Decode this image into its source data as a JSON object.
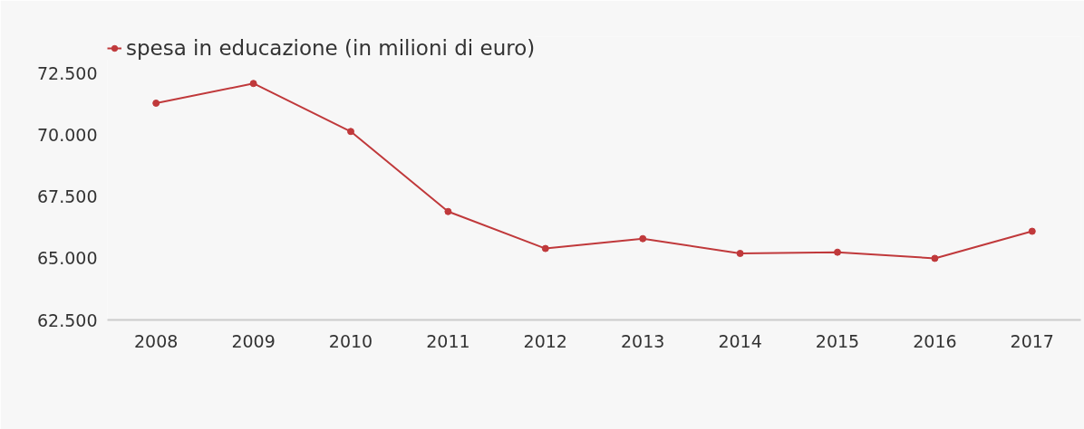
{
  "chart_data": {
    "type": "line",
    "categories": [
      "2008",
      "2009",
      "2010",
      "2011",
      "2012",
      "2013",
      "2014",
      "2015",
      "2016",
      "2017"
    ],
    "series": [
      {
        "name": "spesa in educazione (in milioni di euro)",
        "color": "#c0393b",
        "values": [
          71300,
          72100,
          70150,
          66900,
          65400,
          65800,
          65200,
          65250,
          65000,
          66100
        ]
      }
    ],
    "ylim": [
      62500,
      74000
    ],
    "yticks": [
      {
        "value": 62500,
        "label": "62.500"
      },
      {
        "value": 65000,
        "label": "65.000"
      },
      {
        "value": 67500,
        "label": "67.500"
      },
      {
        "value": 70000,
        "label": "70.000"
      },
      {
        "value": 72500,
        "label": "72.500"
      }
    ],
    "grid": false,
    "legend": "top left",
    "marker": "circle",
    "line_style": "solid"
  }
}
